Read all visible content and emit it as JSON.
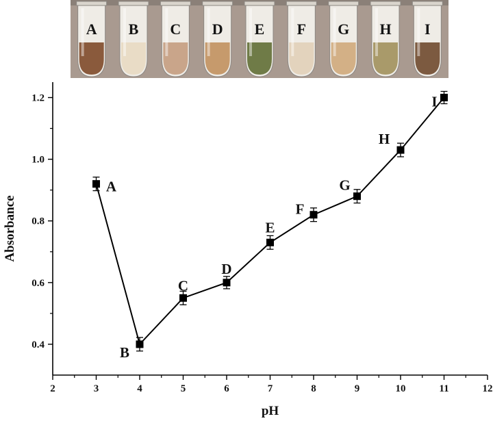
{
  "photo": {
    "tube_labels": [
      "A",
      "B",
      "C",
      "D",
      "E",
      "F",
      "G",
      "H",
      "I"
    ],
    "tube_colors": [
      "#8a5a3c",
      "#e9dcc6",
      "#c9a58a",
      "#c69a6c",
      "#6f7b47",
      "#e3d3bd",
      "#d3b086",
      "#a99a6a",
      "#7c5a40"
    ],
    "background_color": "#a99a90"
  },
  "chart_data": {
    "type": "line",
    "xlabel": "pH",
    "ylabel": "Absorbance",
    "xlim": [
      2,
      12
    ],
    "ylim": [
      0.3,
      1.25
    ],
    "x_ticks": [
      "2",
      "3",
      "4",
      "5",
      "6",
      "7",
      "8",
      "9",
      "10",
      "11",
      "12"
    ],
    "y_ticks": [
      "0.4",
      "0.6",
      "0.8",
      "1.0",
      "1.2"
    ],
    "series": [
      {
        "x": [
          3,
          4,
          5,
          6,
          7,
          8,
          9,
          10,
          11
        ],
        "y": [
          0.92,
          0.4,
          0.55,
          0.6,
          0.73,
          0.82,
          0.88,
          1.03,
          1.2
        ],
        "error": [
          0.022,
          0.022,
          0.022,
          0.02,
          0.022,
          0.022,
          0.022,
          0.022,
          0.02
        ],
        "point_labels": [
          "A",
          "B",
          "C",
          "D",
          "E",
          "F",
          "G",
          "H",
          "I"
        ],
        "color": "#000000",
        "marker": "square"
      }
    ],
    "grid": false,
    "legend": "none"
  }
}
